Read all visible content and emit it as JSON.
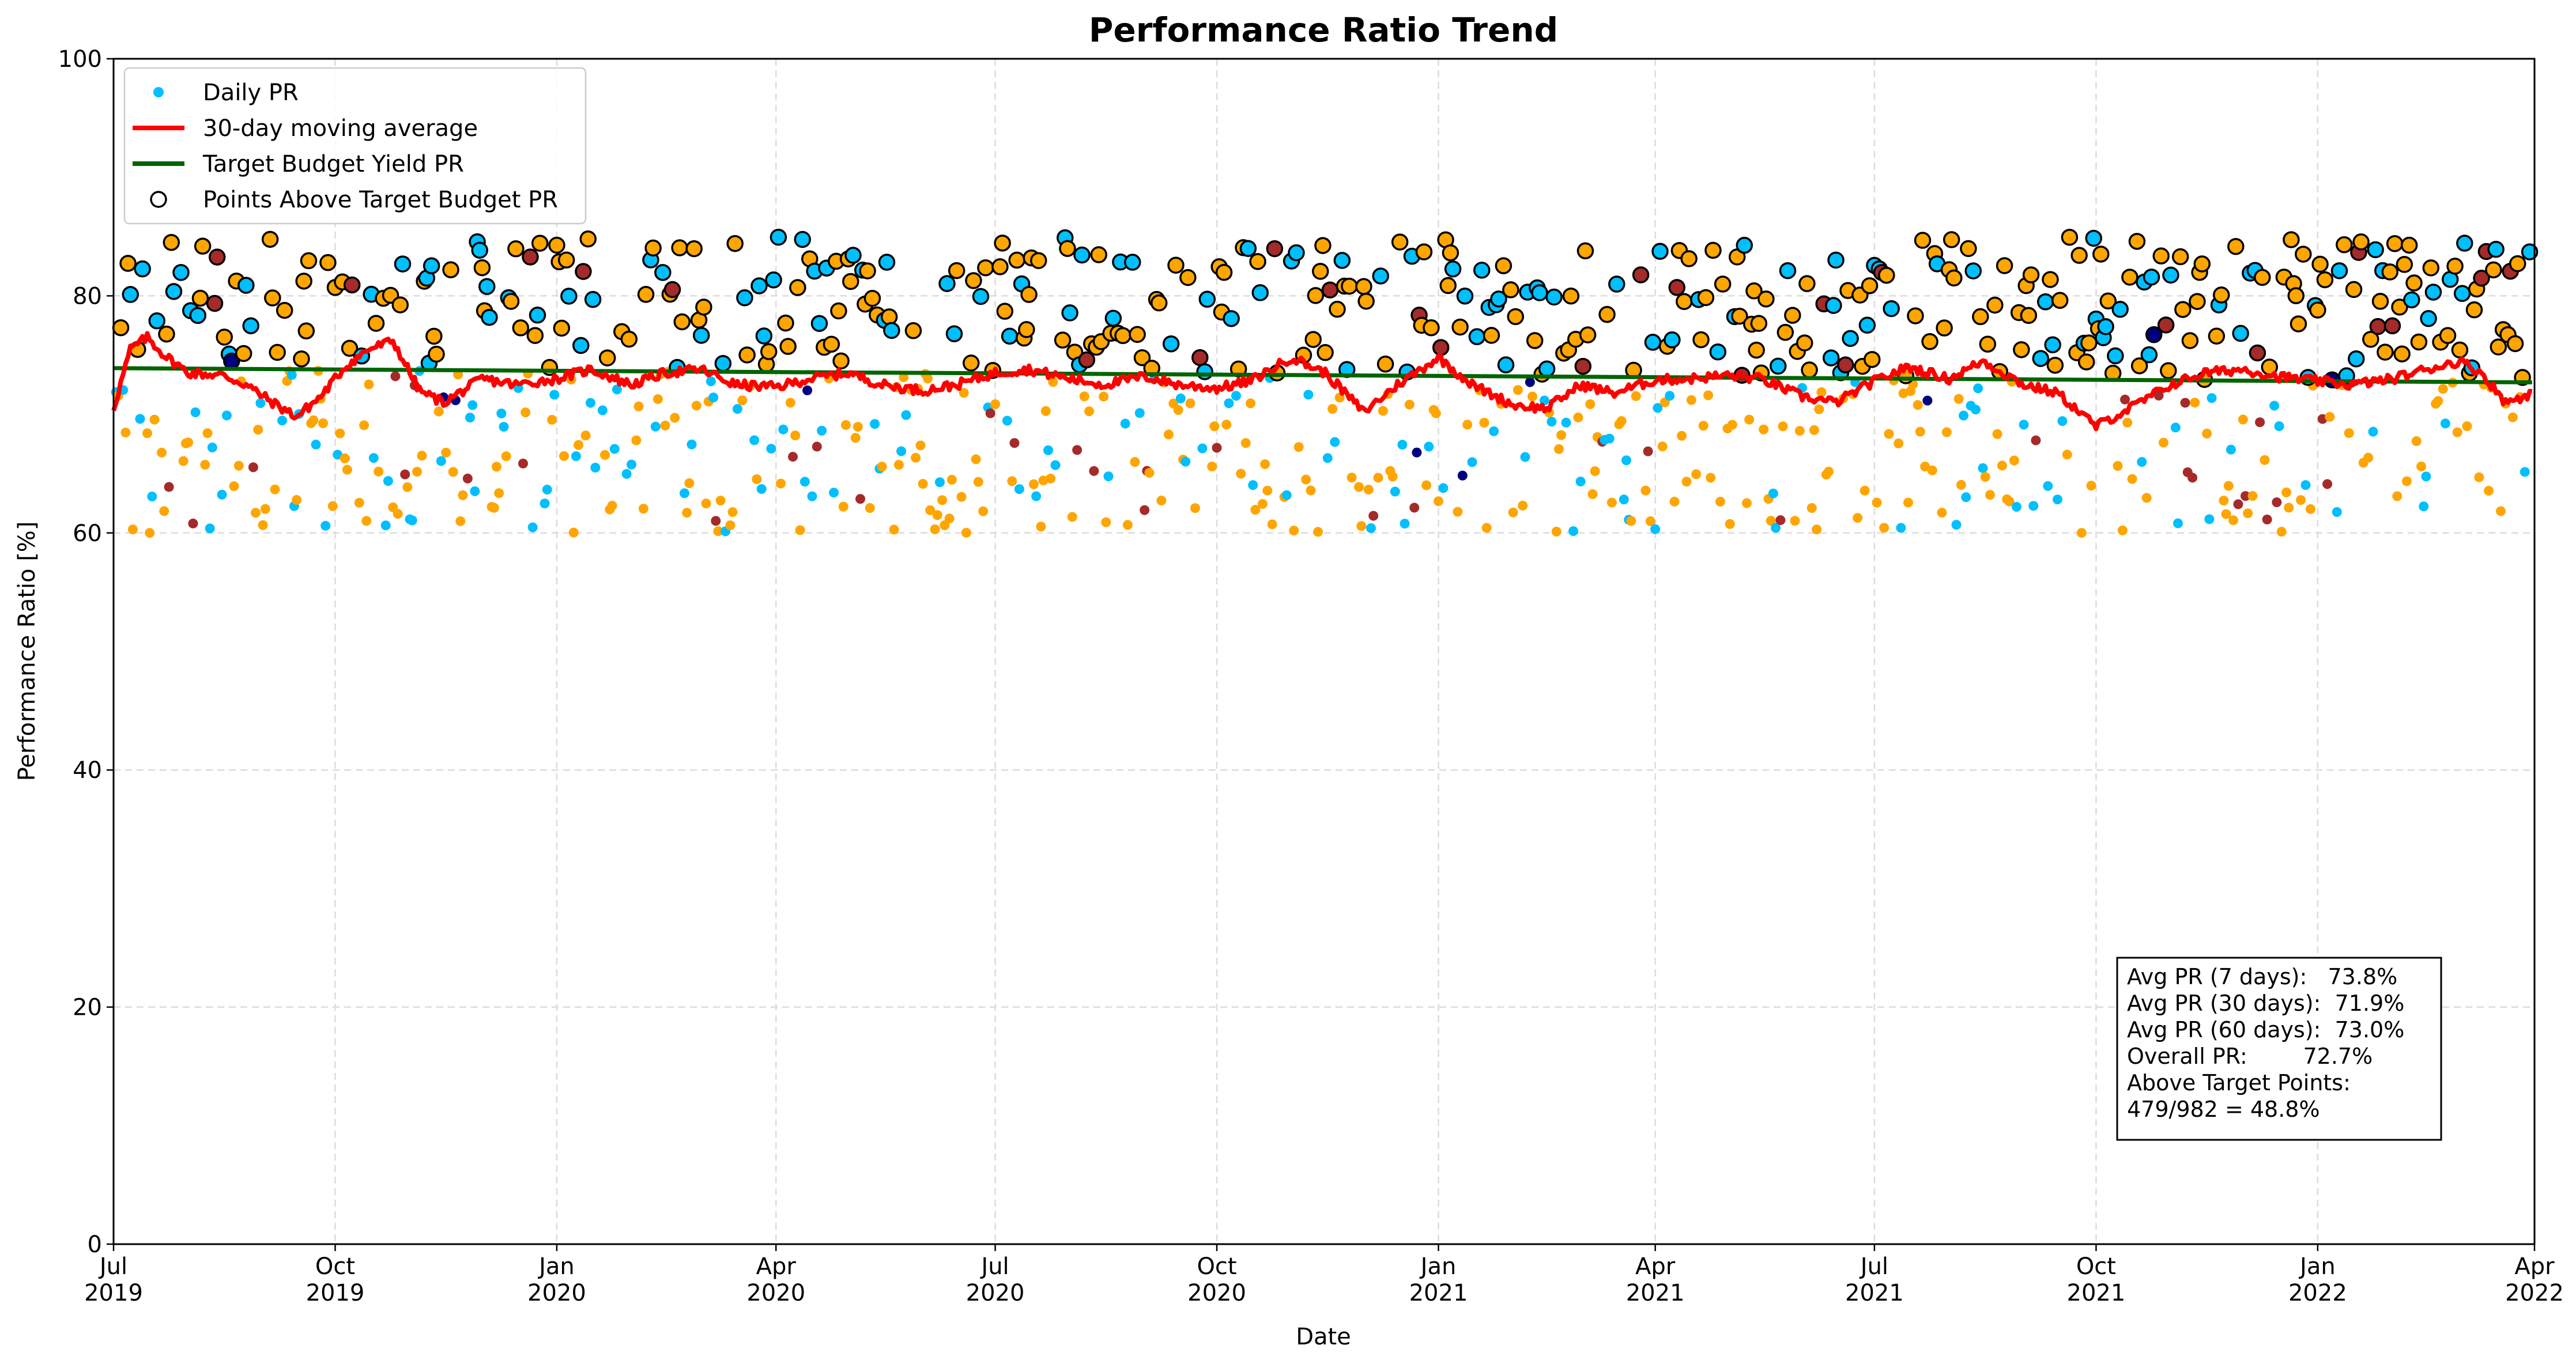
{
  "chart_data": {
    "type": "scatter",
    "title": "Performance Ratio Trend",
    "xlabel": "Date",
    "ylabel": "Performance Ratio [%]",
    "xlim": [
      "2019-07-01",
      "2022-04-01"
    ],
    "ylim": [
      0,
      100
    ],
    "grid": true,
    "legend_position": "top-left",
    "x_ticks": [
      {
        "date": "2019-07-01",
        "line1": "Jul",
        "line2": "2019"
      },
      {
        "date": "2019-10-01",
        "line1": "Oct",
        "line2": "2019"
      },
      {
        "date": "2020-01-01",
        "line1": "Jan",
        "line2": "2020"
      },
      {
        "date": "2020-04-01",
        "line1": "Apr",
        "line2": "2020"
      },
      {
        "date": "2020-07-01",
        "line1": "Jul",
        "line2": "2020"
      },
      {
        "date": "2020-10-01",
        "line1": "Oct",
        "line2": "2020"
      },
      {
        "date": "2021-01-01",
        "line1": "Jan",
        "line2": "2021"
      },
      {
        "date": "2021-04-01",
        "line1": "Apr",
        "line2": "2021"
      },
      {
        "date": "2021-07-01",
        "line1": "Jul",
        "line2": "2021"
      },
      {
        "date": "2021-10-01",
        "line1": "Oct",
        "line2": "2021"
      },
      {
        "date": "2022-01-01",
        "line1": "Jan",
        "line2": "2022"
      },
      {
        "date": "2022-04-01",
        "line1": "Apr",
        "line2": "2022"
      }
    ],
    "y_ticks": [
      0,
      20,
      40,
      60,
      80,
      100
    ],
    "legend": [
      {
        "label": "Daily PR",
        "kind": "dot",
        "color": "#00bfff"
      },
      {
        "label": "30-day moving average",
        "kind": "line",
        "color": "#ff0000"
      },
      {
        "label": "Target Budget Yield PR",
        "kind": "line",
        "color": "#006400"
      },
      {
        "label": "Points Above Target Budget PR",
        "kind": "hollow",
        "color": "#000000"
      }
    ],
    "target_line": {
      "start": [
        "2019-07-01",
        73.9
      ],
      "end": [
        "2022-03-31",
        72.7
      ],
      "color": "#006400"
    },
    "moving_average": {
      "name": "30-day moving average",
      "color": "#ff0000",
      "points": [
        [
          "2019-07-01",
          70.5
        ],
        [
          "2019-07-08",
          75.5
        ],
        [
          "2019-07-15",
          76.5
        ],
        [
          "2019-07-22",
          75.0
        ],
        [
          "2019-08-01",
          73.5
        ],
        [
          "2019-08-15",
          73.3
        ],
        [
          "2019-08-25",
          72.5
        ],
        [
          "2019-09-05",
          71.0
        ],
        [
          "2019-09-15",
          69.8
        ],
        [
          "2019-09-25",
          71.5
        ],
        [
          "2019-10-05",
          74.0
        ],
        [
          "2019-10-15",
          75.5
        ],
        [
          "2019-10-25",
          76.2
        ],
        [
          "2019-11-05",
          72.0
        ],
        [
          "2019-11-15",
          71.0
        ],
        [
          "2019-12-01",
          73.0
        ],
        [
          "2019-12-15",
          72.5
        ],
        [
          "2020-01-01",
          73.0
        ],
        [
          "2020-01-15",
          73.8
        ],
        [
          "2020-02-01",
          72.5
        ],
        [
          "2020-02-15",
          73.5
        ],
        [
          "2020-03-01",
          73.8
        ],
        [
          "2020-03-15",
          72.5
        ],
        [
          "2020-04-01",
          72.3
        ],
        [
          "2020-04-15",
          73.0
        ],
        [
          "2020-05-01",
          73.5
        ],
        [
          "2020-05-15",
          72.5
        ],
        [
          "2020-06-01",
          72.0
        ],
        [
          "2020-06-15",
          72.5
        ],
        [
          "2020-07-01",
          73.5
        ],
        [
          "2020-07-15",
          73.8
        ],
        [
          "2020-08-01",
          73.0
        ],
        [
          "2020-08-15",
          72.5
        ],
        [
          "2020-09-01",
          73.2
        ],
        [
          "2020-09-15",
          72.5
        ],
        [
          "2020-10-01",
          72.2
        ],
        [
          "2020-10-15",
          72.8
        ],
        [
          "2020-11-01",
          74.8
        ],
        [
          "2020-11-15",
          73.5
        ],
        [
          "2020-12-01",
          70.2
        ],
        [
          "2020-12-15",
          72.5
        ],
        [
          "2021-01-01",
          74.8
        ],
        [
          "2021-01-15",
          72.5
        ],
        [
          "2021-02-01",
          70.8
        ],
        [
          "2021-02-15",
          70.5
        ],
        [
          "2021-03-01",
          72.5
        ],
        [
          "2021-03-15",
          71.8
        ],
        [
          "2021-04-01",
          72.9
        ],
        [
          "2021-04-15",
          73.0
        ],
        [
          "2021-05-01",
          73.3
        ],
        [
          "2021-05-15",
          73.0
        ],
        [
          "2021-06-01",
          71.5
        ],
        [
          "2021-06-15",
          71.0
        ],
        [
          "2021-07-01",
          72.8
        ],
        [
          "2021-07-15",
          74.0
        ],
        [
          "2021-08-01",
          73.0
        ],
        [
          "2021-08-15",
          74.5
        ],
        [
          "2021-09-01",
          72.5
        ],
        [
          "2021-09-15",
          71.8
        ],
        [
          "2021-10-01",
          69.0
        ],
        [
          "2021-10-15",
          70.5
        ],
        [
          "2021-11-01",
          72.5
        ],
        [
          "2021-11-15",
          73.5
        ],
        [
          "2021-12-01",
          73.8
        ],
        [
          "2021-12-15",
          73.2
        ],
        [
          "2022-01-01",
          72.8
        ],
        [
          "2022-01-15",
          72.5
        ],
        [
          "2022-02-01",
          73.0
        ],
        [
          "2022-02-15",
          73.8
        ],
        [
          "2022-03-01",
          74.5
        ],
        [
          "2022-03-10",
          73.5
        ],
        [
          "2022-03-20",
          71.0
        ],
        [
          "2022-03-31",
          71.8
        ]
      ]
    },
    "daily_pr_colors": [
      "#00bfff",
      "#ffa500",
      "#a52a2a",
      "#000080"
    ],
    "daily_pr_count": 982,
    "above_target_count": 479,
    "stats_box": {
      "lines": [
        "Avg PR (7 days):   73.8%",
        "Avg PR (30 days):  71.9%",
        "Avg PR (60 days):  73.0%",
        "Overall PR:        72.7%",
        "Above Target Points:",
        "479/982 = 48.8%"
      ]
    }
  }
}
